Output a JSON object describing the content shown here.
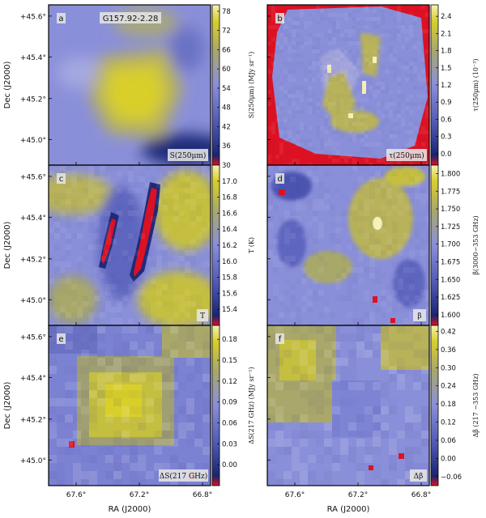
{
  "figure_title": "G157.92-2.28",
  "axes": {
    "ylabel": "Dec (J2000)",
    "xlabel": "RA (J2000)",
    "y_ticks": [
      "+45.6°",
      "+45.4°",
      "+45.2°",
      "+45.0°"
    ],
    "x_ticks": [
      "67.6°",
      "67.2°",
      "66.8°"
    ]
  },
  "colors": {
    "low_accent": "#dd1122",
    "mid": "#8a8fd9",
    "high": "#d8cf2a",
    "peak": "#f5f1b8",
    "frame": "#000000"
  },
  "chart_data": [
    {
      "type": "heatmap",
      "panel": "a",
      "title": "G157.92-2.28",
      "annotation": "S(250μm)",
      "colorbar_label": "S(250μm) (MJy sr⁻¹)",
      "colorbar_ticks": [
        "78",
        "72",
        "66",
        "60",
        "54",
        "48",
        "42",
        "36",
        "30"
      ],
      "clim": [
        30,
        80
      ]
    },
    {
      "type": "heatmap",
      "panel": "b",
      "annotation": "τ(250μm)",
      "colorbar_label": "τ(250μm) (10⁻³)",
      "colorbar_ticks": [
        "2.4",
        "2.1",
        "1.8",
        "1.5",
        "1.2",
        "0.9",
        "0.6",
        "0.3",
        "0.0"
      ],
      "clim": [
        -0.2,
        2.6
      ]
    },
    {
      "type": "heatmap",
      "panel": "c",
      "annotation": "T",
      "colorbar_label": "T (K)",
      "colorbar_ticks": [
        "17.0",
        "16.8",
        "16.6",
        "16.4",
        "16.2",
        "16.0",
        "15.8",
        "15.6",
        "15.4"
      ],
      "clim": [
        15.2,
        17.2
      ]
    },
    {
      "type": "heatmap",
      "panel": "d",
      "annotation": "β",
      "colorbar_label": "β(3000−353 GHz)",
      "colorbar_ticks": [
        "1.800",
        "1.775",
        "1.750",
        "1.725",
        "1.700",
        "1.675",
        "1.650",
        "1.625",
        "1.600"
      ],
      "clim": [
        1.585,
        1.812
      ]
    },
    {
      "type": "heatmap",
      "panel": "e",
      "annotation": "ΔS(217 GHz)",
      "colorbar_label": "ΔS(217 GHz) (MJy sr⁻¹)",
      "colorbar_ticks": [
        "0.18",
        "0.15",
        "0.12",
        "0.09",
        "0.06",
        "0.03",
        "0.00"
      ],
      "clim": [
        -0.03,
        0.2
      ]
    },
    {
      "type": "heatmap",
      "panel": "f",
      "annotation": "Δβ",
      "colorbar_label": "Δβ (217 −353 GHz)",
      "colorbar_ticks": [
        "0.42",
        "0.36",
        "0.30",
        "0.24",
        "0.18",
        "0.12",
        "0.06",
        "0.00",
        "−0.06"
      ],
      "clim": [
        -0.09,
        0.44
      ]
    }
  ]
}
